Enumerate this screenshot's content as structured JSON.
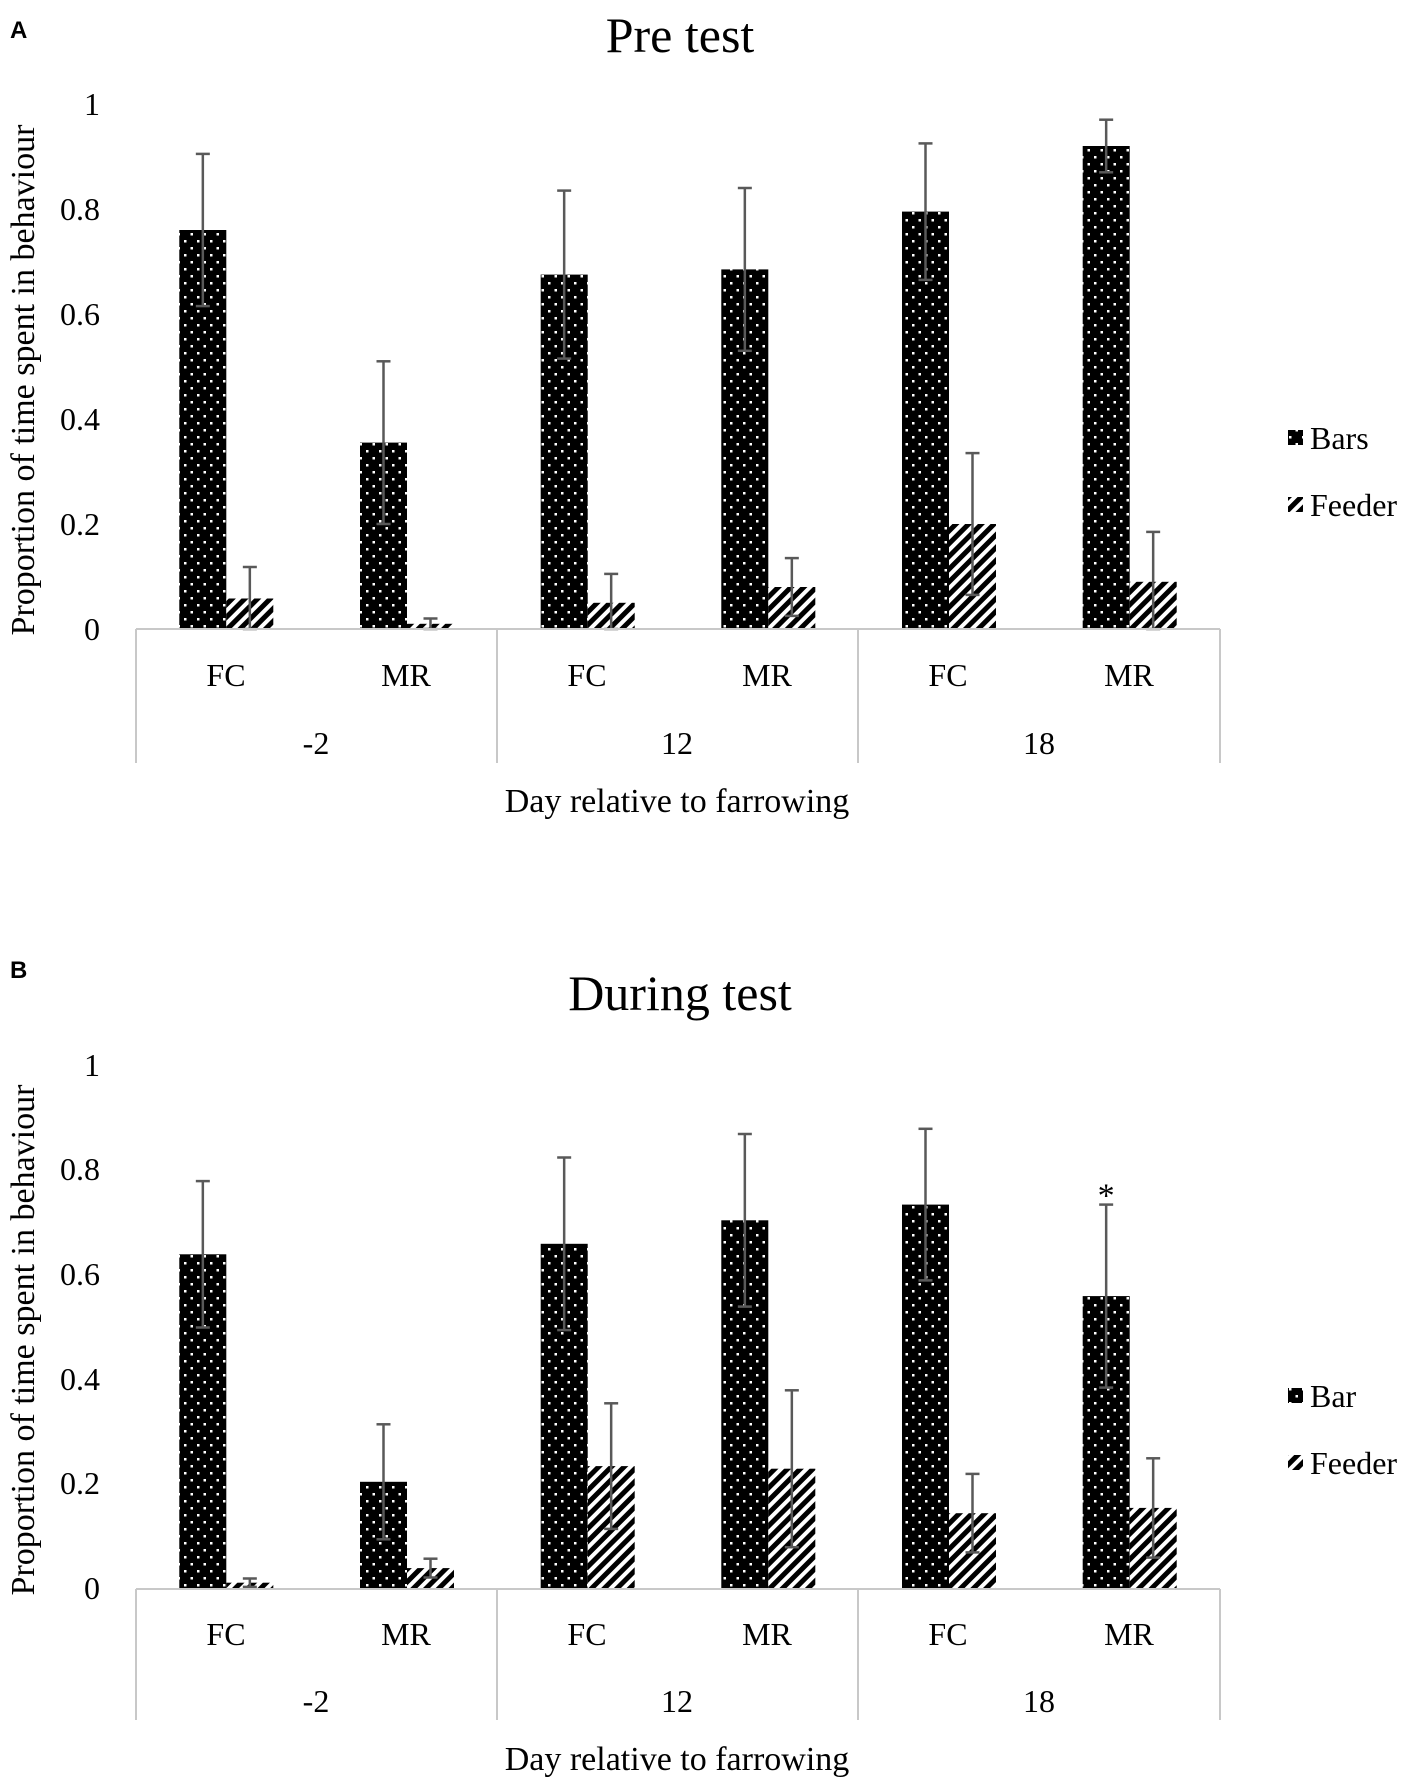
{
  "chart_data": [
    {
      "type": "bar",
      "panel": "A",
      "title": "Pre test",
      "xlabel": "Day relative to farrowing",
      "ylabel": "Proportion of time spent in behaviour",
      "ylim": [
        0,
        1
      ],
      "yticks": [
        "0",
        "0.2",
        "0.4",
        "0.6",
        "0.8",
        "1"
      ],
      "groups": [
        "-2",
        "12",
        "18"
      ],
      "categories": [
        "FC",
        "MR",
        "FC",
        "MR",
        "FC",
        "MR"
      ],
      "series": [
        {
          "name": "Bars",
          "pattern": "dots",
          "values": [
            0.76,
            0.355,
            0.675,
            0.685,
            0.795,
            0.92
          ],
          "errors": [
            0.145,
            0.155,
            0.16,
            0.155,
            0.13,
            0.05
          ]
        },
        {
          "name": "Feeder",
          "pattern": "stripes",
          "values": [
            0.058,
            0.01,
            0.05,
            0.08,
            0.2,
            0.09
          ],
          "errors": [
            0.06,
            0.01,
            0.055,
            0.055,
            0.135,
            0.095
          ]
        }
      ],
      "annotations": []
    },
    {
      "type": "bar",
      "panel": "B",
      "title": "During test",
      "xlabel": "Day relative to farrowing",
      "ylabel": "Proportion of time spent in behaviour",
      "ylim": [
        0,
        1
      ],
      "yticks": [
        "0",
        "0.2",
        "0.4",
        "0.6",
        "0.8",
        "1"
      ],
      "groups": [
        "-2",
        "12",
        "18"
      ],
      "categories": [
        "FC",
        "MR",
        "FC",
        "MR",
        "FC",
        "MR"
      ],
      "series": [
        {
          "name": "Bar",
          "pattern": "dots",
          "values": [
            0.64,
            0.205,
            0.66,
            0.705,
            0.735,
            0.56
          ],
          "errors": [
            0.14,
            0.11,
            0.165,
            0.165,
            0.145,
            0.175
          ]
        },
        {
          "name": "Feeder",
          "pattern": "stripes",
          "values": [
            0.012,
            0.04,
            0.235,
            0.23,
            0.145,
            0.155
          ],
          "errors": [
            0.008,
            0.018,
            0.12,
            0.15,
            0.075,
            0.095
          ]
        }
      ],
      "annotations": [
        {
          "text": "*",
          "category_index": 5,
          "series_index": 0
        }
      ]
    }
  ]
}
